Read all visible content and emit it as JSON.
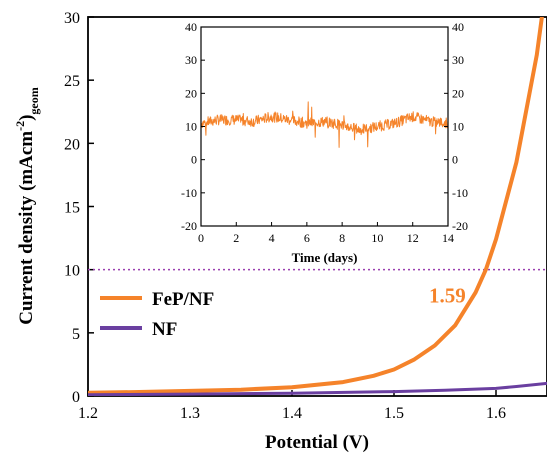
{
  "chart_data": [
    {
      "type": "line",
      "xlabel": "Potential  (V)",
      "ylabel_main": "Current density (mAcm",
      "ylabel_sup": "-2",
      "ylabel_close": ")",
      "ylabel_sub": "geom",
      "xlim": [
        1.2,
        1.65
      ],
      "ylim": [
        0,
        30
      ],
      "xticks": [
        "1.2",
        "1.3",
        "1.4",
        "1.5",
        "1.6"
      ],
      "yticks": [
        "0",
        "5",
        "10",
        "15",
        "20",
        "25",
        "30"
      ],
      "reference_line": {
        "y": 10,
        "style": "dotted",
        "color": "#9b3fb0"
      },
      "annotation": {
        "text": "1.59",
        "x": 1.59,
        "y": 10,
        "color": "#f5832a"
      },
      "legend": "left",
      "series": [
        {
          "name": "FeP/NF",
          "color": "#f5832a",
          "x": [
            1.2,
            1.25,
            1.3,
            1.35,
            1.4,
            1.45,
            1.48,
            1.5,
            1.52,
            1.54,
            1.56,
            1.58,
            1.59,
            1.6,
            1.62,
            1.64,
            1.65
          ],
          "y": [
            0.25,
            0.32,
            0.4,
            0.5,
            0.7,
            1.1,
            1.6,
            2.1,
            2.9,
            4.0,
            5.6,
            8.2,
            10.0,
            12.4,
            18.5,
            27.0,
            33.0
          ]
        },
        {
          "name": "NF",
          "color": "#6a3fa0",
          "x": [
            1.2,
            1.3,
            1.4,
            1.5,
            1.55,
            1.6,
            1.62,
            1.65
          ],
          "y": [
            0.1,
            0.15,
            0.22,
            0.35,
            0.45,
            0.6,
            0.75,
            1.0
          ]
        }
      ]
    },
    {
      "type": "line",
      "xlabel": "Time (days)",
      "xlim": [
        0,
        14
      ],
      "ylim": [
        -20,
        40
      ],
      "xticks": [
        "0",
        "2",
        "4",
        "6",
        "8",
        "10",
        "12",
        "14"
      ],
      "yticks": [
        "-20",
        "-10",
        "0",
        "10",
        "20",
        "30",
        "40"
      ],
      "series": [
        {
          "color": "#f5832a",
          "x": [
            0,
            1,
            2,
            3,
            4,
            5,
            6,
            7,
            8,
            9,
            10,
            11,
            12,
            13,
            14
          ],
          "y": [
            11,
            12,
            12,
            11.5,
            13,
            12,
            11,
            11.5,
            10.5,
            9,
            10,
            11,
            13,
            11.5,
            11
          ]
        }
      ]
    }
  ]
}
